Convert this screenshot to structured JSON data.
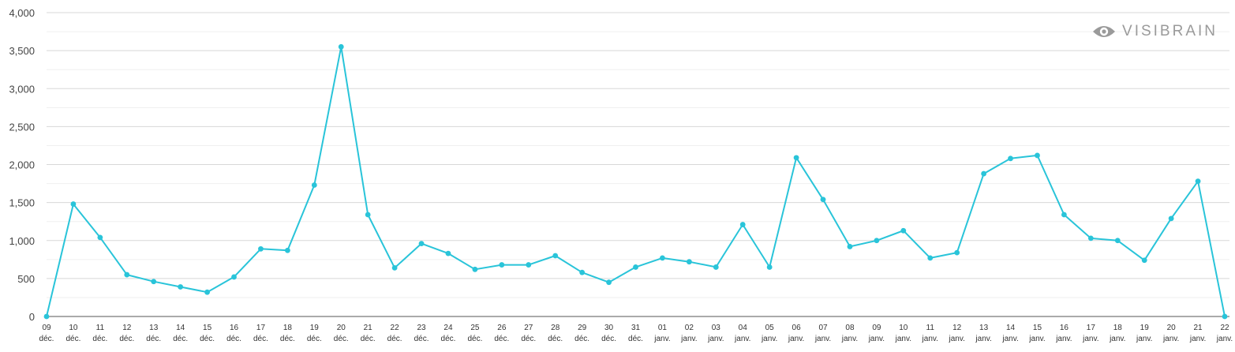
{
  "brand": {
    "name": "VISIBRAIN",
    "icon": "eye-icon",
    "color": "#9a9a9a"
  },
  "chart_data": {
    "type": "line",
    "title": "",
    "xlabel": "",
    "ylabel": "",
    "ylim": [
      0,
      4000
    ],
    "yticks": [
      0,
      500,
      1000,
      1500,
      2000,
      2500,
      3000,
      3500,
      4000
    ],
    "ytick_labels": [
      "0",
      "500",
      "1,000",
      "1,500",
      "2,000",
      "2,500",
      "3,000",
      "3,500",
      "4,000"
    ],
    "grid": true,
    "legend": "none",
    "color": "#29c4d9",
    "categories": [
      [
        "09",
        "déc."
      ],
      [
        "10",
        "déc."
      ],
      [
        "11",
        "déc."
      ],
      [
        "12",
        "déc."
      ],
      [
        "13",
        "déc."
      ],
      [
        "14",
        "déc."
      ],
      [
        "15",
        "déc."
      ],
      [
        "16",
        "déc."
      ],
      [
        "17",
        "déc."
      ],
      [
        "18",
        "déc."
      ],
      [
        "19",
        "déc."
      ],
      [
        "20",
        "déc."
      ],
      [
        "21",
        "déc."
      ],
      [
        "22",
        "déc."
      ],
      [
        "23",
        "déc."
      ],
      [
        "24",
        "déc."
      ],
      [
        "25",
        "déc."
      ],
      [
        "26",
        "déc."
      ],
      [
        "27",
        "déc."
      ],
      [
        "28",
        "déc."
      ],
      [
        "29",
        "déc."
      ],
      [
        "30",
        "déc."
      ],
      [
        "31",
        "déc."
      ],
      [
        "01",
        "janv."
      ],
      [
        "02",
        "janv."
      ],
      [
        "03",
        "janv."
      ],
      [
        "04",
        "janv."
      ],
      [
        "05",
        "janv."
      ],
      [
        "06",
        "janv."
      ],
      [
        "07",
        "janv."
      ],
      [
        "08",
        "janv."
      ],
      [
        "09",
        "janv."
      ],
      [
        "10",
        "janv."
      ],
      [
        "11",
        "janv."
      ],
      [
        "12",
        "janv."
      ],
      [
        "13",
        "janv."
      ],
      [
        "14",
        "janv."
      ],
      [
        "15",
        "janv."
      ],
      [
        "16",
        "janv."
      ],
      [
        "17",
        "janv."
      ],
      [
        "18",
        "janv."
      ],
      [
        "19",
        "janv."
      ],
      [
        "20",
        "janv."
      ],
      [
        "21",
        "janv."
      ],
      [
        "22",
        "janv."
      ]
    ],
    "values": [
      0,
      1480,
      1040,
      550,
      460,
      390,
      320,
      520,
      890,
      870,
      1730,
      3550,
      1340,
      640,
      960,
      830,
      620,
      680,
      680,
      800,
      580,
      450,
      650,
      770,
      720,
      650,
      1210,
      650,
      2090,
      1540,
      920,
      1000,
      1130,
      770,
      840,
      1880,
      2080,
      2120,
      1340,
      1030,
      1000,
      740,
      1290,
      1780,
      0
    ]
  }
}
